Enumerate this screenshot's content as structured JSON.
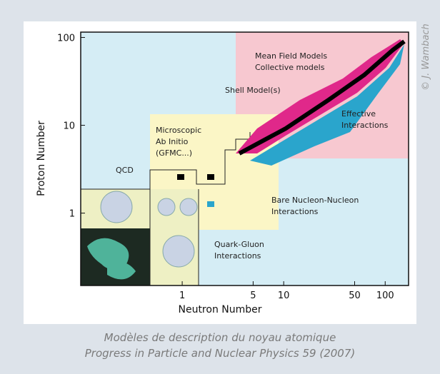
{
  "figure": {
    "credit": "© J. Wambach",
    "x_label": "Neutron Number",
    "y_label": "Proton Number",
    "log_scale": true,
    "xlim": [
      0.1,
      170
    ],
    "ylim": [
      0.15,
      115
    ],
    "xticks": [
      1,
      5,
      10,
      50,
      100
    ],
    "yticks": [
      1,
      10,
      100
    ],
    "regions": [
      {
        "label": [
          "Mean Field Models",
          "Collective models"
        ]
      },
      {
        "label": [
          "Shell Model(s)"
        ]
      },
      {
        "label": [
          "Effective",
          "Interactions"
        ]
      },
      {
        "label": [
          "Microscopic",
          "Ab Initio",
          "(GFMC...)"
        ]
      },
      {
        "label": [
          "QCD"
        ]
      },
      {
        "label": [
          "Bare Nucleon-Nucleon",
          "Interactions"
        ]
      },
      {
        "label": [
          "Quark-Gluon",
          "Interactions"
        ]
      }
    ]
  },
  "caption": [
    "Modèles de description du noyau atomique",
    "Progress in Particle and Nuclear Physics 59 (2007)"
  ]
}
